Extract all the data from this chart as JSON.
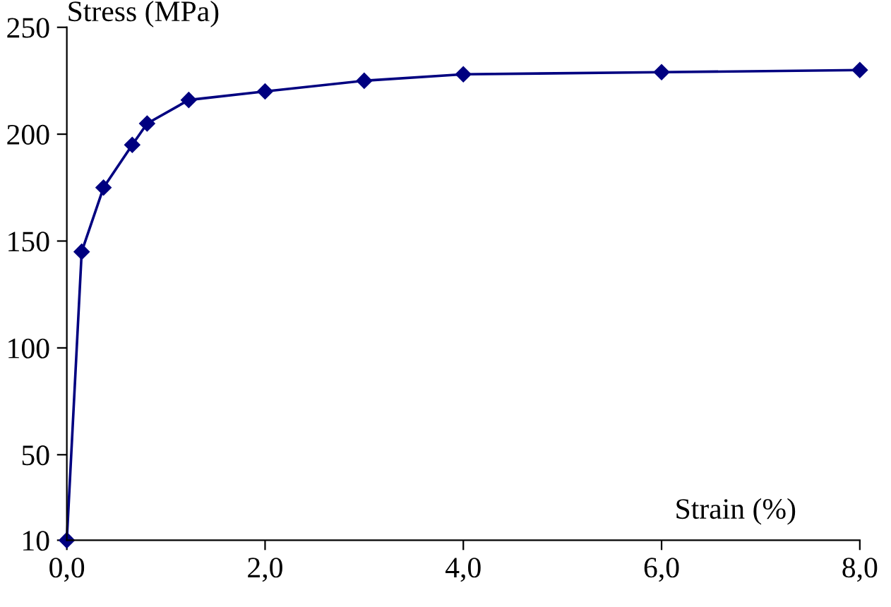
{
  "chart_data": {
    "type": "line",
    "ylabel": "Stress (MPa)",
    "xlabel": "Strain (%)",
    "x": [
      0,
      0.15,
      0.37,
      0.66,
      0.81,
      1.23,
      2.0,
      3.0,
      4.0,
      6.0,
      8.0
    ],
    "series": [
      {
        "color": "#000080",
        "values": [
          10,
          145,
          175,
          195,
          205,
          216,
          220,
          225,
          228,
          229,
          230
        ]
      }
    ],
    "xlim": [
      0,
      8
    ],
    "xticks": [
      {
        "value": 0,
        "label": "0,0"
      },
      {
        "value": 2,
        "label": "2,0"
      },
      {
        "value": 4,
        "label": "4,0"
      },
      {
        "value": 6,
        "label": "6,0"
      },
      {
        "value": 8,
        "label": "8,0"
      }
    ],
    "ylim": [
      10,
      250
    ],
    "yticks": [
      10,
      50,
      100,
      150,
      200,
      250
    ],
    "grid": false,
    "legend": false,
    "marker": "diamond",
    "line_style": "solid"
  }
}
